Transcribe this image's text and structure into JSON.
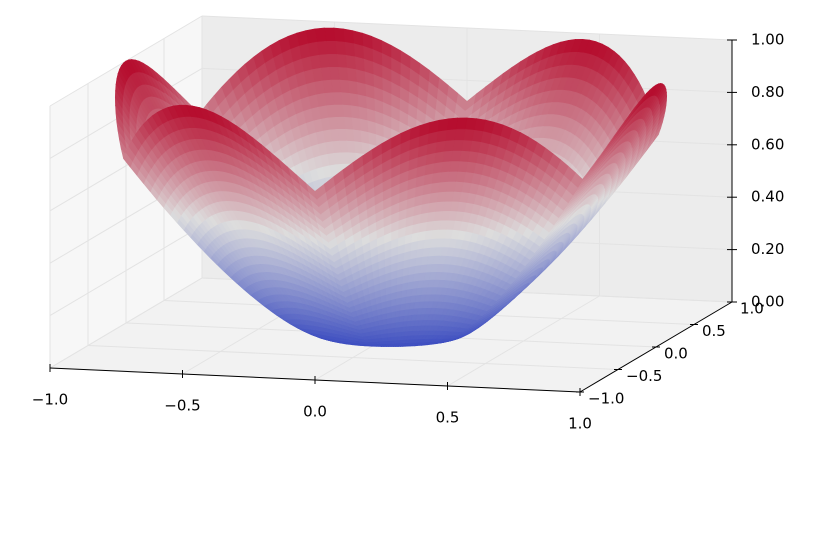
{
  "chart_data": {
    "type": "surface3d",
    "title": "",
    "colormap": "coolwarm",
    "grid": true,
    "x_axis": {
      "label": "",
      "range": [
        -1.0,
        1.0
      ],
      "ticks": [
        "−1.0",
        "−0.5",
        "0.0",
        "0.5",
        "1.0"
      ]
    },
    "y_axis": {
      "label": "",
      "range": [
        -1.0,
        1.0
      ],
      "ticks": [
        "−1.0",
        "−0.5",
        "0.0",
        "0.5",
        "1.0"
      ]
    },
    "z_axis": {
      "label": "",
      "range": [
        0.0,
        1.0
      ],
      "ticks": [
        "0.00",
        "0.20",
        "0.40",
        "0.60",
        "0.80",
        "1.00"
      ]
    },
    "surface": {
      "domain": "polar",
      "r_range": [
        0.25,
        1.0
      ],
      "theta_range_deg": [
        0,
        360
      ],
      "lobes": 6,
      "z_min": 0.0,
      "z_max": 1.0
    },
    "colors": {
      "low": "#3b4cc0",
      "mid": "#dddddd",
      "high": "#b40426"
    }
  }
}
